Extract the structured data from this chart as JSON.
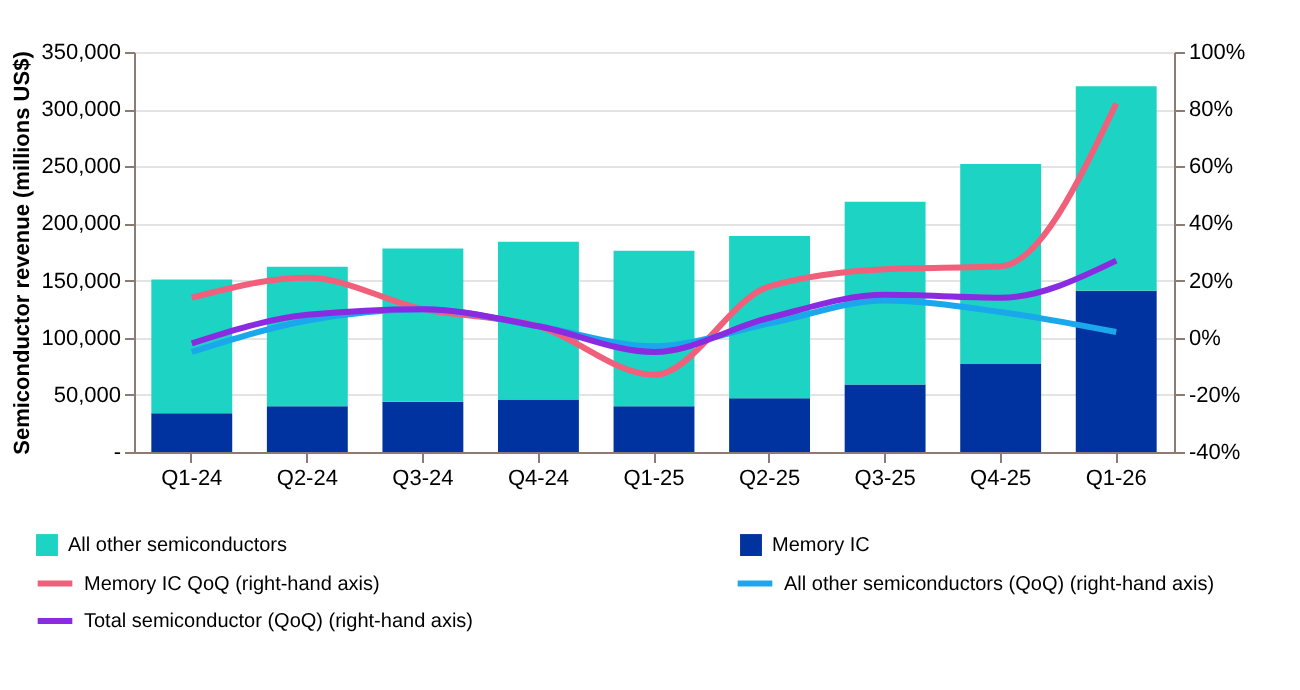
{
  "chart_data": {
    "type": "bar",
    "stacked": true,
    "ylabel": "Semiconductor revenue (millions US$)",
    "categories": [
      "Q1-24",
      "Q2-24",
      "Q3-24",
      "Q4-24",
      "Q1-25",
      "Q2-25",
      "Q3-25",
      "Q4-25",
      "Q1-26"
    ],
    "series": [
      {
        "name": "Memory IC",
        "color": "#0033a0",
        "values": [
          34000,
          40000,
          44000,
          46000,
          40000,
          47000,
          59000,
          77000,
          141000
        ]
      },
      {
        "name": "All other semiconductors",
        "color": "#1dd3c4",
        "values": [
          117000,
          122000,
          134000,
          138000,
          136000,
          142000,
          160000,
          175000,
          179000
        ]
      },
      {
        "name": "Memory IC QoQ (right-hand axis)",
        "type": "line",
        "axis": "y2",
        "color": "#f0607a",
        "values": [
          14,
          21,
          10,
          4,
          -13,
          18,
          24,
          25,
          82
        ]
      },
      {
        "name": "All other semiconductors (QoQ) (right-hand axis)",
        "type": "line",
        "axis": "y2",
        "color": "#1aa7ec",
        "values": [
          -5,
          6,
          10,
          4,
          -3,
          5,
          13,
          9,
          2
        ]
      },
      {
        "name": "Total semiconductor (QoQ) (right-hand axis)",
        "type": "line",
        "axis": "y2",
        "color": "#8a2be2",
        "values": [
          -2,
          8,
          10,
          4,
          -5,
          7,
          15,
          14,
          27
        ]
      }
    ],
    "ylim": [
      0,
      350000
    ],
    "yticks": [
      {
        "value": 0,
        "label": "-"
      },
      {
        "value": 50000,
        "label": "50,000"
      },
      {
        "value": 100000,
        "label": "100,000"
      },
      {
        "value": 150000,
        "label": "150,000"
      },
      {
        "value": 200000,
        "label": "200,000"
      },
      {
        "value": 250000,
        "label": "250,000"
      },
      {
        "value": 300000,
        "label": "300,000"
      },
      {
        "value": 350000,
        "label": "350,000"
      }
    ],
    "y2lim": [
      -40,
      100
    ],
    "y2ticks": [
      {
        "value": -40,
        "label": "-40%"
      },
      {
        "value": -20,
        "label": "-20%"
      },
      {
        "value": 0,
        "label": "0%"
      },
      {
        "value": 20,
        "label": "20%"
      },
      {
        "value": 40,
        "label": "40%"
      },
      {
        "value": 60,
        "label": "60%"
      },
      {
        "value": 80,
        "label": "80%"
      },
      {
        "value": 100,
        "label": "100%"
      }
    ],
    "grid": "y",
    "legend": "bottom",
    "marker": "none",
    "line_style": "solid"
  }
}
